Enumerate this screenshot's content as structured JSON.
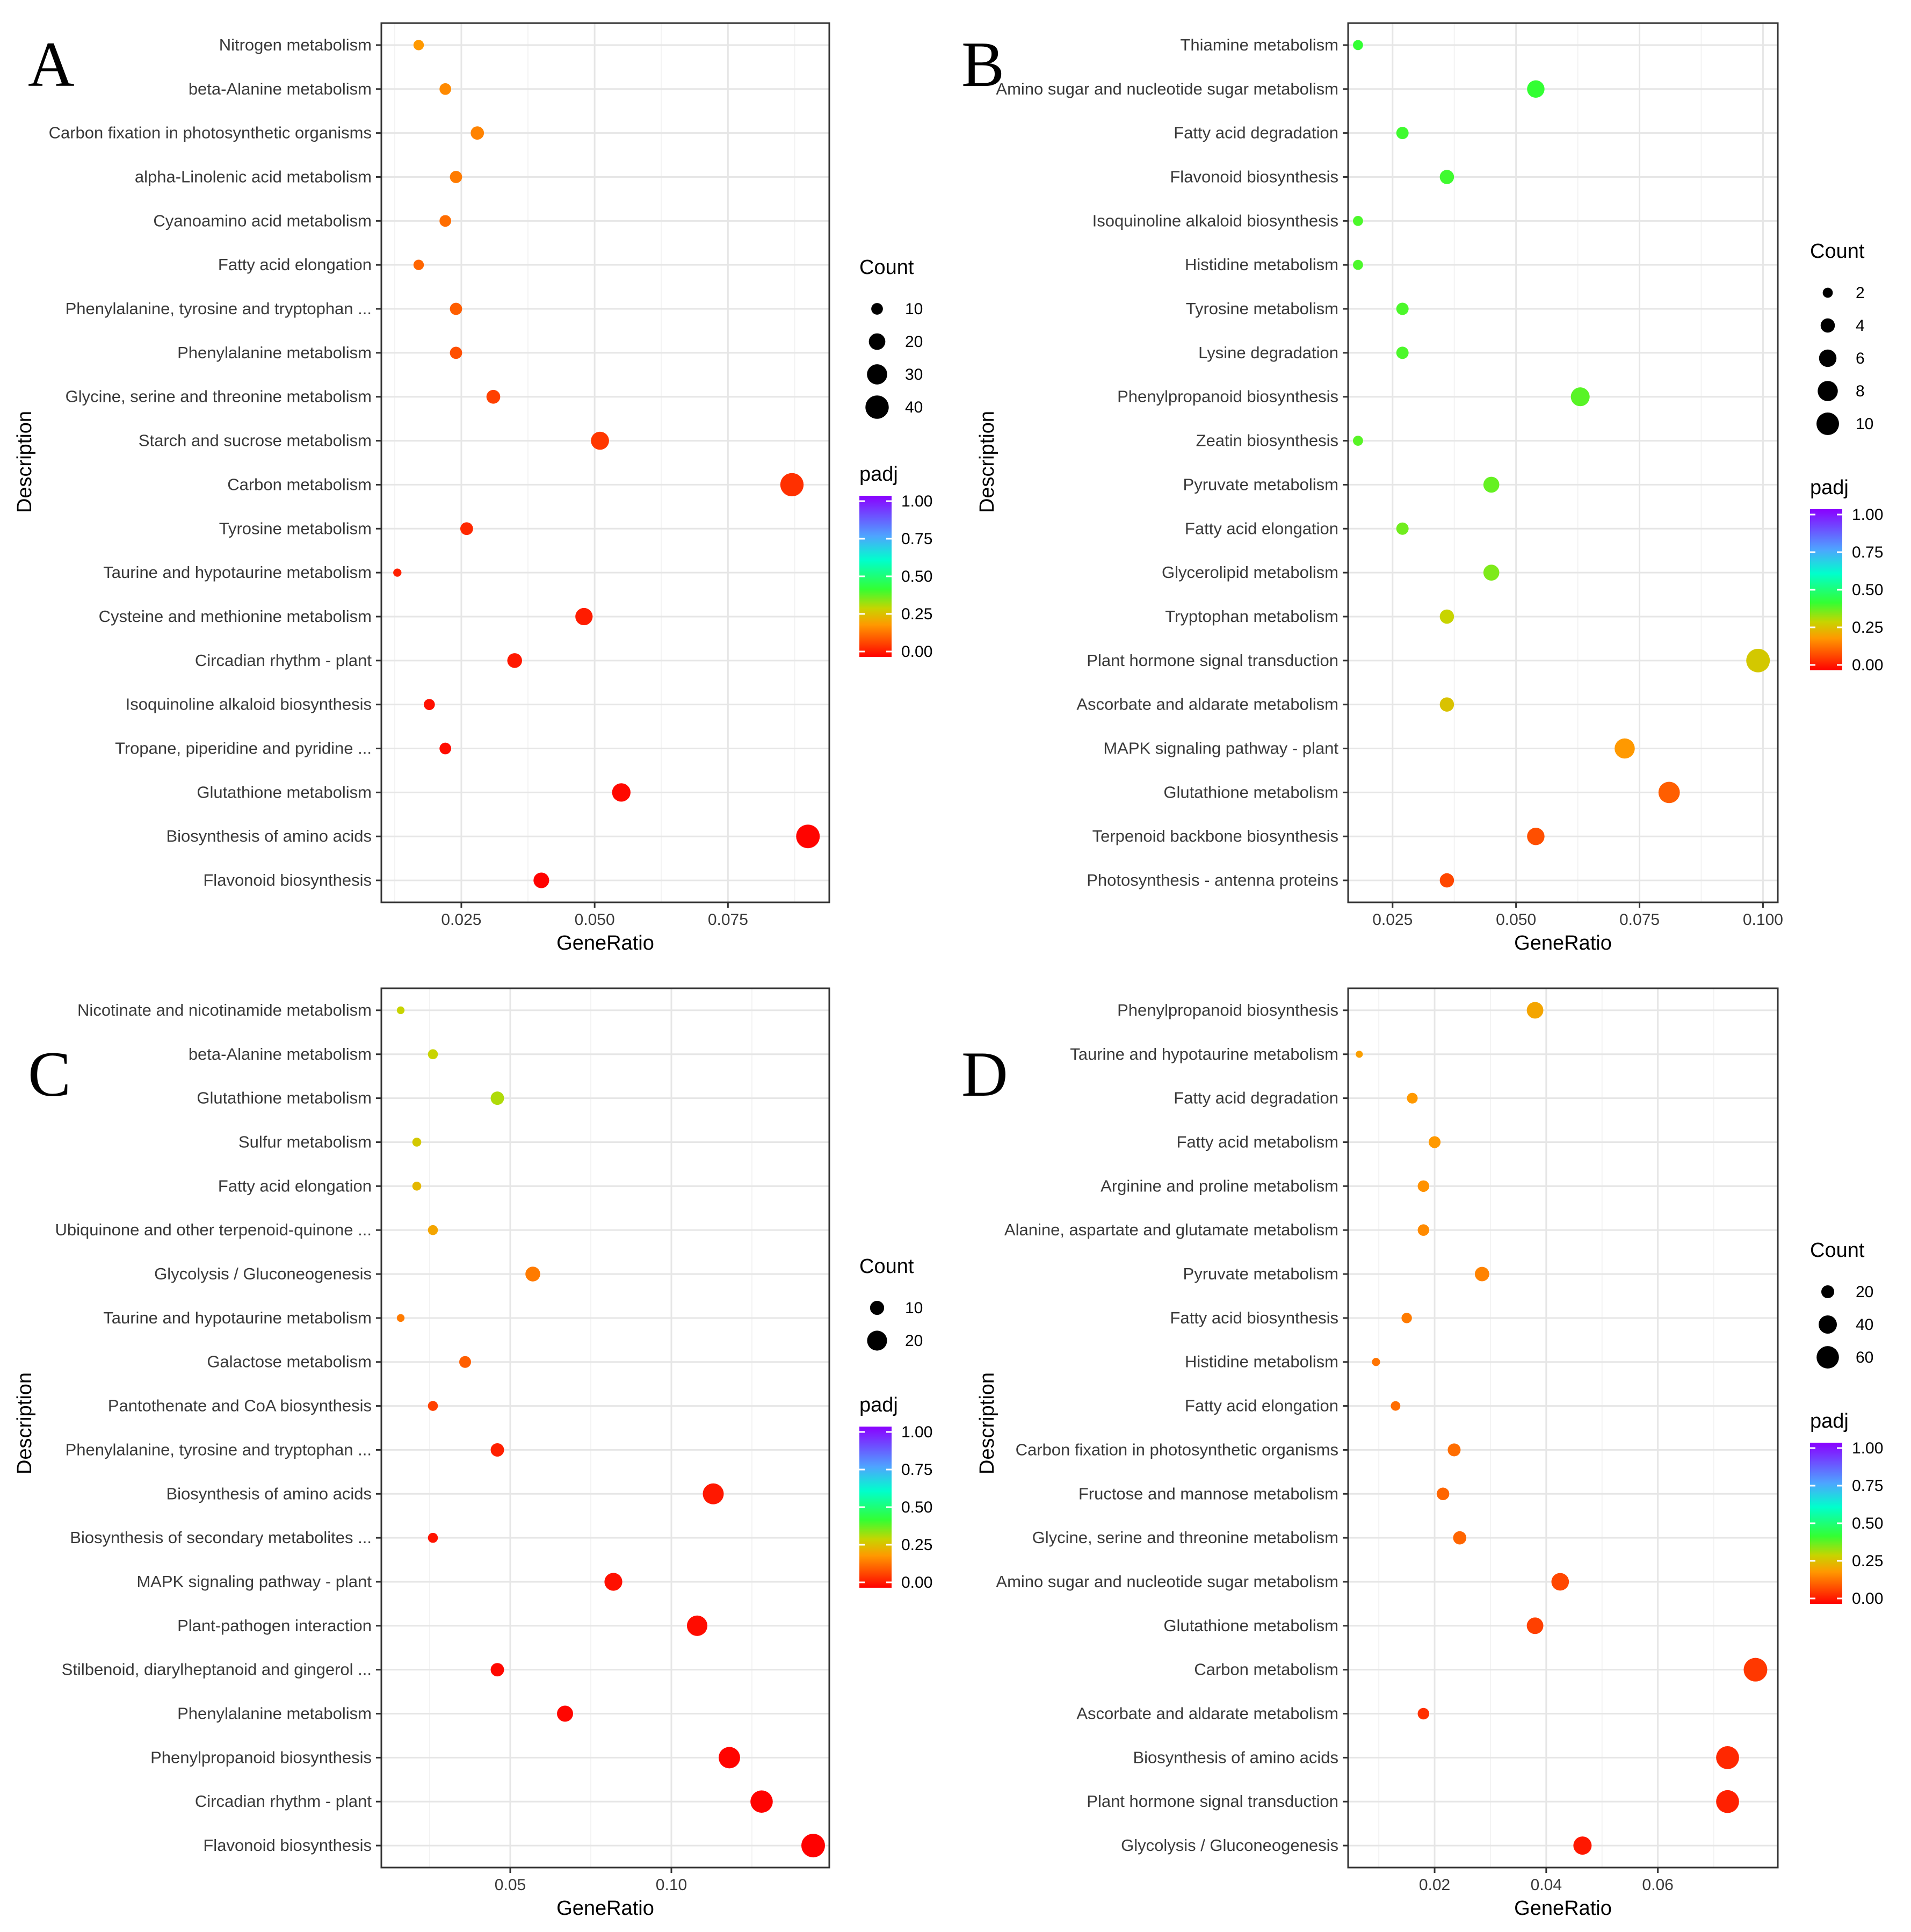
{
  "chart_data": [
    {
      "type": "scatter",
      "panel": "A",
      "xlabel": "GeneRatio",
      "ylabel": "Description",
      "xlim": [
        0.01,
        0.094
      ],
      "xticks": [
        0.025,
        0.05,
        0.075
      ],
      "xtick_labels": [
        "0.025",
        "0.050",
        "0.075"
      ],
      "size_legend": {
        "title": "Count",
        "values": [
          10,
          20,
          30,
          40
        ],
        "labels": [
          "10",
          "20",
          "30",
          "40"
        ]
      },
      "color_legend": {
        "title": "padj",
        "ticks": [
          "1.00",
          "0.75",
          "0.50",
          "0.25",
          "0.00"
        ]
      },
      "points": [
        {
          "description": "Nitrogen metabolism",
          "gene_ratio": 0.017,
          "count": 8,
          "padj": 0.2
        },
        {
          "description": "beta-Alanine metabolism",
          "gene_ratio": 0.022,
          "count": 10,
          "padj": 0.18
        },
        {
          "description": "Carbon fixation in photosynthetic organisms",
          "gene_ratio": 0.028,
          "count": 13,
          "padj": 0.17
        },
        {
          "description": "alpha-Linolenic acid metabolism",
          "gene_ratio": 0.024,
          "count": 11,
          "padj": 0.16
        },
        {
          "description": "Cyanoamino acid metabolism",
          "gene_ratio": 0.022,
          "count": 10,
          "padj": 0.14
        },
        {
          "description": "Fatty acid elongation",
          "gene_ratio": 0.017,
          "count": 8,
          "padj": 0.13
        },
        {
          "description": "Phenylalanine, tyrosine and tryptophan ...",
          "gene_ratio": 0.024,
          "count": 11,
          "padj": 0.12
        },
        {
          "description": "Phenylalanine metabolism",
          "gene_ratio": 0.024,
          "count": 11,
          "padj": 0.1
        },
        {
          "description": "Glycine, serine and threonine metabolism",
          "gene_ratio": 0.031,
          "count": 14,
          "padj": 0.08
        },
        {
          "description": "Starch and sucrose metabolism",
          "gene_ratio": 0.051,
          "count": 24,
          "padj": 0.07
        },
        {
          "description": "Carbon metabolism",
          "gene_ratio": 0.087,
          "count": 40,
          "padj": 0.06
        },
        {
          "description": "Tyrosine metabolism",
          "gene_ratio": 0.026,
          "count": 12,
          "padj": 0.05
        },
        {
          "description": "Taurine and hypotaurine metabolism",
          "gene_ratio": 0.013,
          "count": 5,
          "padj": 0.04
        },
        {
          "description": "Cysteine and methionine metabolism",
          "gene_ratio": 0.048,
          "count": 22,
          "padj": 0.035
        },
        {
          "description": "Circadian rhythm - plant",
          "gene_ratio": 0.035,
          "count": 16,
          "padj": 0.03
        },
        {
          "description": "Isoquinoline alkaloid biosynthesis",
          "gene_ratio": 0.019,
          "count": 9,
          "padj": 0.02
        },
        {
          "description": "Tropane, piperidine and pyridine ...",
          "gene_ratio": 0.022,
          "count": 10,
          "padj": 0.015
        },
        {
          "description": "Glutathione metabolism",
          "gene_ratio": 0.055,
          "count": 25,
          "padj": 0.01
        },
        {
          "description": "Biosynthesis of amino acids",
          "gene_ratio": 0.09,
          "count": 41,
          "padj": 0.005
        },
        {
          "description": "Flavonoid biosynthesis",
          "gene_ratio": 0.04,
          "count": 18,
          "padj": 0.003
        }
      ]
    },
    {
      "type": "scatter",
      "panel": "B",
      "xlabel": "GeneRatio",
      "ylabel": "Description",
      "xlim": [
        0.016,
        0.103
      ],
      "xticks": [
        0.025,
        0.05,
        0.075,
        0.1
      ],
      "xtick_labels": [
        "0.025",
        "0.050",
        "0.075",
        "0.100"
      ],
      "size_legend": {
        "title": "Count",
        "values": [
          2,
          4,
          6,
          8,
          10
        ],
        "labels": [
          "2",
          "4",
          "6",
          "8",
          "10"
        ]
      },
      "color_legend": {
        "title": "padj",
        "ticks": [
          "1.00",
          "0.75",
          "0.50",
          "0.25",
          "0.00"
        ]
      },
      "points": [
        {
          "description": "Thiamine metabolism",
          "gene_ratio": 0.018,
          "count": 2,
          "padj": 0.42
        },
        {
          "description": "Amino sugar and nucleotide sugar metabolism",
          "gene_ratio": 0.054,
          "count": 6,
          "padj": 0.42
        },
        {
          "description": "Fatty acid degradation",
          "gene_ratio": 0.027,
          "count": 3,
          "padj": 0.41
        },
        {
          "description": "Flavonoid biosynthesis",
          "gene_ratio": 0.036,
          "count": 4,
          "padj": 0.41
        },
        {
          "description": "Isoquinoline alkaloid biosynthesis",
          "gene_ratio": 0.018,
          "count": 2,
          "padj": 0.4
        },
        {
          "description": "Histidine metabolism",
          "gene_ratio": 0.018,
          "count": 2,
          "padj": 0.4
        },
        {
          "description": "Tyrosine metabolism",
          "gene_ratio": 0.027,
          "count": 3,
          "padj": 0.4
        },
        {
          "description": "Lysine degradation",
          "gene_ratio": 0.027,
          "count": 3,
          "padj": 0.4
        },
        {
          "description": "Phenylpropanoid biosynthesis",
          "gene_ratio": 0.063,
          "count": 7,
          "padj": 0.39
        },
        {
          "description": "Zeatin biosynthesis",
          "gene_ratio": 0.018,
          "count": 2,
          "padj": 0.39
        },
        {
          "description": "Pyruvate metabolism",
          "gene_ratio": 0.045,
          "count": 5,
          "padj": 0.38
        },
        {
          "description": "Fatty acid elongation",
          "gene_ratio": 0.027,
          "count": 3,
          "padj": 0.37
        },
        {
          "description": "Glycerolipid metabolism",
          "gene_ratio": 0.045,
          "count": 5,
          "padj": 0.36
        },
        {
          "description": "Tryptophan metabolism",
          "gene_ratio": 0.036,
          "count": 4,
          "padj": 0.3
        },
        {
          "description": "Plant hormone signal transduction",
          "gene_ratio": 0.099,
          "count": 11,
          "padj": 0.28
        },
        {
          "description": "Ascorbate and aldarate metabolism",
          "gene_ratio": 0.036,
          "count": 4,
          "padj": 0.27
        },
        {
          "description": "MAPK signaling pathway - plant",
          "gene_ratio": 0.072,
          "count": 8,
          "padj": 0.2
        },
        {
          "description": "Glutathione metabolism",
          "gene_ratio": 0.081,
          "count": 9,
          "padj": 0.12
        },
        {
          "description": "Terpenoid backbone biosynthesis",
          "gene_ratio": 0.054,
          "count": 6,
          "padj": 0.1
        },
        {
          "description": "Photosynthesis - antenna proteins",
          "gene_ratio": 0.036,
          "count": 4,
          "padj": 0.09
        }
      ]
    },
    {
      "type": "scatter",
      "panel": "C",
      "xlabel": "GeneRatio",
      "ylabel": "Description",
      "xlim": [
        0.01,
        0.149
      ],
      "xticks": [
        0.05,
        0.1
      ],
      "xtick_labels": [
        "0.05",
        "0.10"
      ],
      "size_legend": {
        "title": "Count",
        "values": [
          10,
          20
        ],
        "labels": [
          "10",
          "20"
        ]
      },
      "color_legend": {
        "title": "padj",
        "ticks": [
          "1.00",
          "0.75",
          "0.50",
          "0.25",
          "0.00"
        ]
      },
      "points": [
        {
          "description": "Nicotinate and nicotinamide metabolism",
          "gene_ratio": 0.016,
          "count": 3,
          "padj": 0.3
        },
        {
          "description": "beta-Alanine metabolism",
          "gene_ratio": 0.026,
          "count": 5,
          "padj": 0.3
        },
        {
          "description": "Glutathione metabolism",
          "gene_ratio": 0.046,
          "count": 9,
          "padj": 0.32
        },
        {
          "description": "Sulfur metabolism",
          "gene_ratio": 0.021,
          "count": 4,
          "padj": 0.28
        },
        {
          "description": "Fatty acid elongation",
          "gene_ratio": 0.021,
          "count": 4,
          "padj": 0.25
        },
        {
          "description": "Ubiquinone and other terpenoid-quinone ...",
          "gene_ratio": 0.026,
          "count": 5,
          "padj": 0.22
        },
        {
          "description": "Glycolysis / Gluconeogenesis",
          "gene_ratio": 0.057,
          "count": 11,
          "padj": 0.16
        },
        {
          "description": "Taurine and hypotaurine metabolism",
          "gene_ratio": 0.016,
          "count": 3,
          "padj": 0.16
        },
        {
          "description": "Galactose metabolism",
          "gene_ratio": 0.036,
          "count": 7,
          "padj": 0.12
        },
        {
          "description": "Pantothenate and CoA biosynthesis",
          "gene_ratio": 0.026,
          "count": 5,
          "padj": 0.08
        },
        {
          "description": "Phenylalanine, tyrosine and tryptophan ...",
          "gene_ratio": 0.046,
          "count": 9,
          "padj": 0.04
        },
        {
          "description": "Biosynthesis of amino acids",
          "gene_ratio": 0.113,
          "count": 22,
          "padj": 0.03
        },
        {
          "description": "Biosynthesis of secondary metabolites ...",
          "gene_ratio": 0.026,
          "count": 5,
          "padj": 0.025
        },
        {
          "description": "MAPK signaling pathway - plant",
          "gene_ratio": 0.082,
          "count": 16,
          "padj": 0.02
        },
        {
          "description": "Plant-pathogen interaction",
          "gene_ratio": 0.108,
          "count": 21,
          "padj": 0.015
        },
        {
          "description": "Stilbenoid, diarylheptanoid and gingerol ...",
          "gene_ratio": 0.046,
          "count": 9,
          "padj": 0.01
        },
        {
          "description": "Phenylalanine metabolism",
          "gene_ratio": 0.067,
          "count": 13,
          "padj": 0.008
        },
        {
          "description": "Phenylpropanoid biosynthesis",
          "gene_ratio": 0.118,
          "count": 23,
          "padj": 0.005
        },
        {
          "description": "Circadian rhythm - plant",
          "gene_ratio": 0.128,
          "count": 25,
          "padj": 0.003
        },
        {
          "description": "Flavonoid biosynthesis",
          "gene_ratio": 0.144,
          "count": 28,
          "padj": 0.001
        }
      ]
    },
    {
      "type": "scatter",
      "panel": "D",
      "xlabel": "GeneRatio",
      "ylabel": "Description",
      "xlim": [
        0.0045,
        0.0815
      ],
      "xticks": [
        0.02,
        0.04,
        0.06
      ],
      "xtick_labels": [
        "0.02",
        "0.04",
        "0.06"
      ],
      "size_legend": {
        "title": "Count",
        "values": [
          20,
          40,
          60
        ],
        "labels": [
          "20",
          "40",
          "60"
        ]
      },
      "color_legend": {
        "title": "padj",
        "ticks": [
          "1.00",
          "0.75",
          "0.50",
          "0.25",
          "0.00"
        ]
      },
      "points": [
        {
          "description": "Phenylpropanoid biosynthesis",
          "gene_ratio": 0.038,
          "count": 33,
          "padj": 0.22
        },
        {
          "description": "Taurine and hypotaurine metabolism",
          "gene_ratio": 0.0065,
          "count": 6,
          "padj": 0.21
        },
        {
          "description": "Fatty acid degradation",
          "gene_ratio": 0.016,
          "count": 14,
          "padj": 0.2
        },
        {
          "description": "Fatty acid metabolism",
          "gene_ratio": 0.02,
          "count": 17,
          "padj": 0.2
        },
        {
          "description": "Arginine and proline metabolism",
          "gene_ratio": 0.018,
          "count": 16,
          "padj": 0.19
        },
        {
          "description": "Alanine, aspartate and glutamate metabolism",
          "gene_ratio": 0.018,
          "count": 16,
          "padj": 0.18
        },
        {
          "description": "Pyruvate metabolism",
          "gene_ratio": 0.0285,
          "count": 25,
          "padj": 0.17
        },
        {
          "description": "Fatty acid biosynthesis",
          "gene_ratio": 0.015,
          "count": 13,
          "padj": 0.16
        },
        {
          "description": "Histidine metabolism",
          "gene_ratio": 0.0095,
          "count": 8,
          "padj": 0.15
        },
        {
          "description": "Fatty acid elongation",
          "gene_ratio": 0.013,
          "count": 11,
          "padj": 0.14
        },
        {
          "description": "Carbon fixation in photosynthetic organisms",
          "gene_ratio": 0.0235,
          "count": 20,
          "padj": 0.14
        },
        {
          "description": "Fructose and mannose metabolism",
          "gene_ratio": 0.0215,
          "count": 19,
          "padj": 0.13
        },
        {
          "description": "Glycine, serine and threonine metabolism",
          "gene_ratio": 0.0245,
          "count": 21,
          "padj": 0.13
        },
        {
          "description": "Amino sugar and nucleotide sugar metabolism",
          "gene_ratio": 0.0425,
          "count": 37,
          "padj": 0.09
        },
        {
          "description": "Glutathione metabolism",
          "gene_ratio": 0.038,
          "count": 33,
          "padj": 0.08
        },
        {
          "description": "Carbon metabolism",
          "gene_ratio": 0.0775,
          "count": 67,
          "padj": 0.07
        },
        {
          "description": "Ascorbate and aldarate metabolism",
          "gene_ratio": 0.018,
          "count": 16,
          "padj": 0.06
        },
        {
          "description": "Biosynthesis of amino acids",
          "gene_ratio": 0.0725,
          "count": 63,
          "padj": 0.05
        },
        {
          "description": "Plant hormone signal transduction",
          "gene_ratio": 0.0725,
          "count": 63,
          "padj": 0.04
        },
        {
          "description": "Glycolysis / Gluconeogenesis",
          "gene_ratio": 0.0465,
          "count": 40,
          "padj": 0.03
        }
      ]
    }
  ]
}
